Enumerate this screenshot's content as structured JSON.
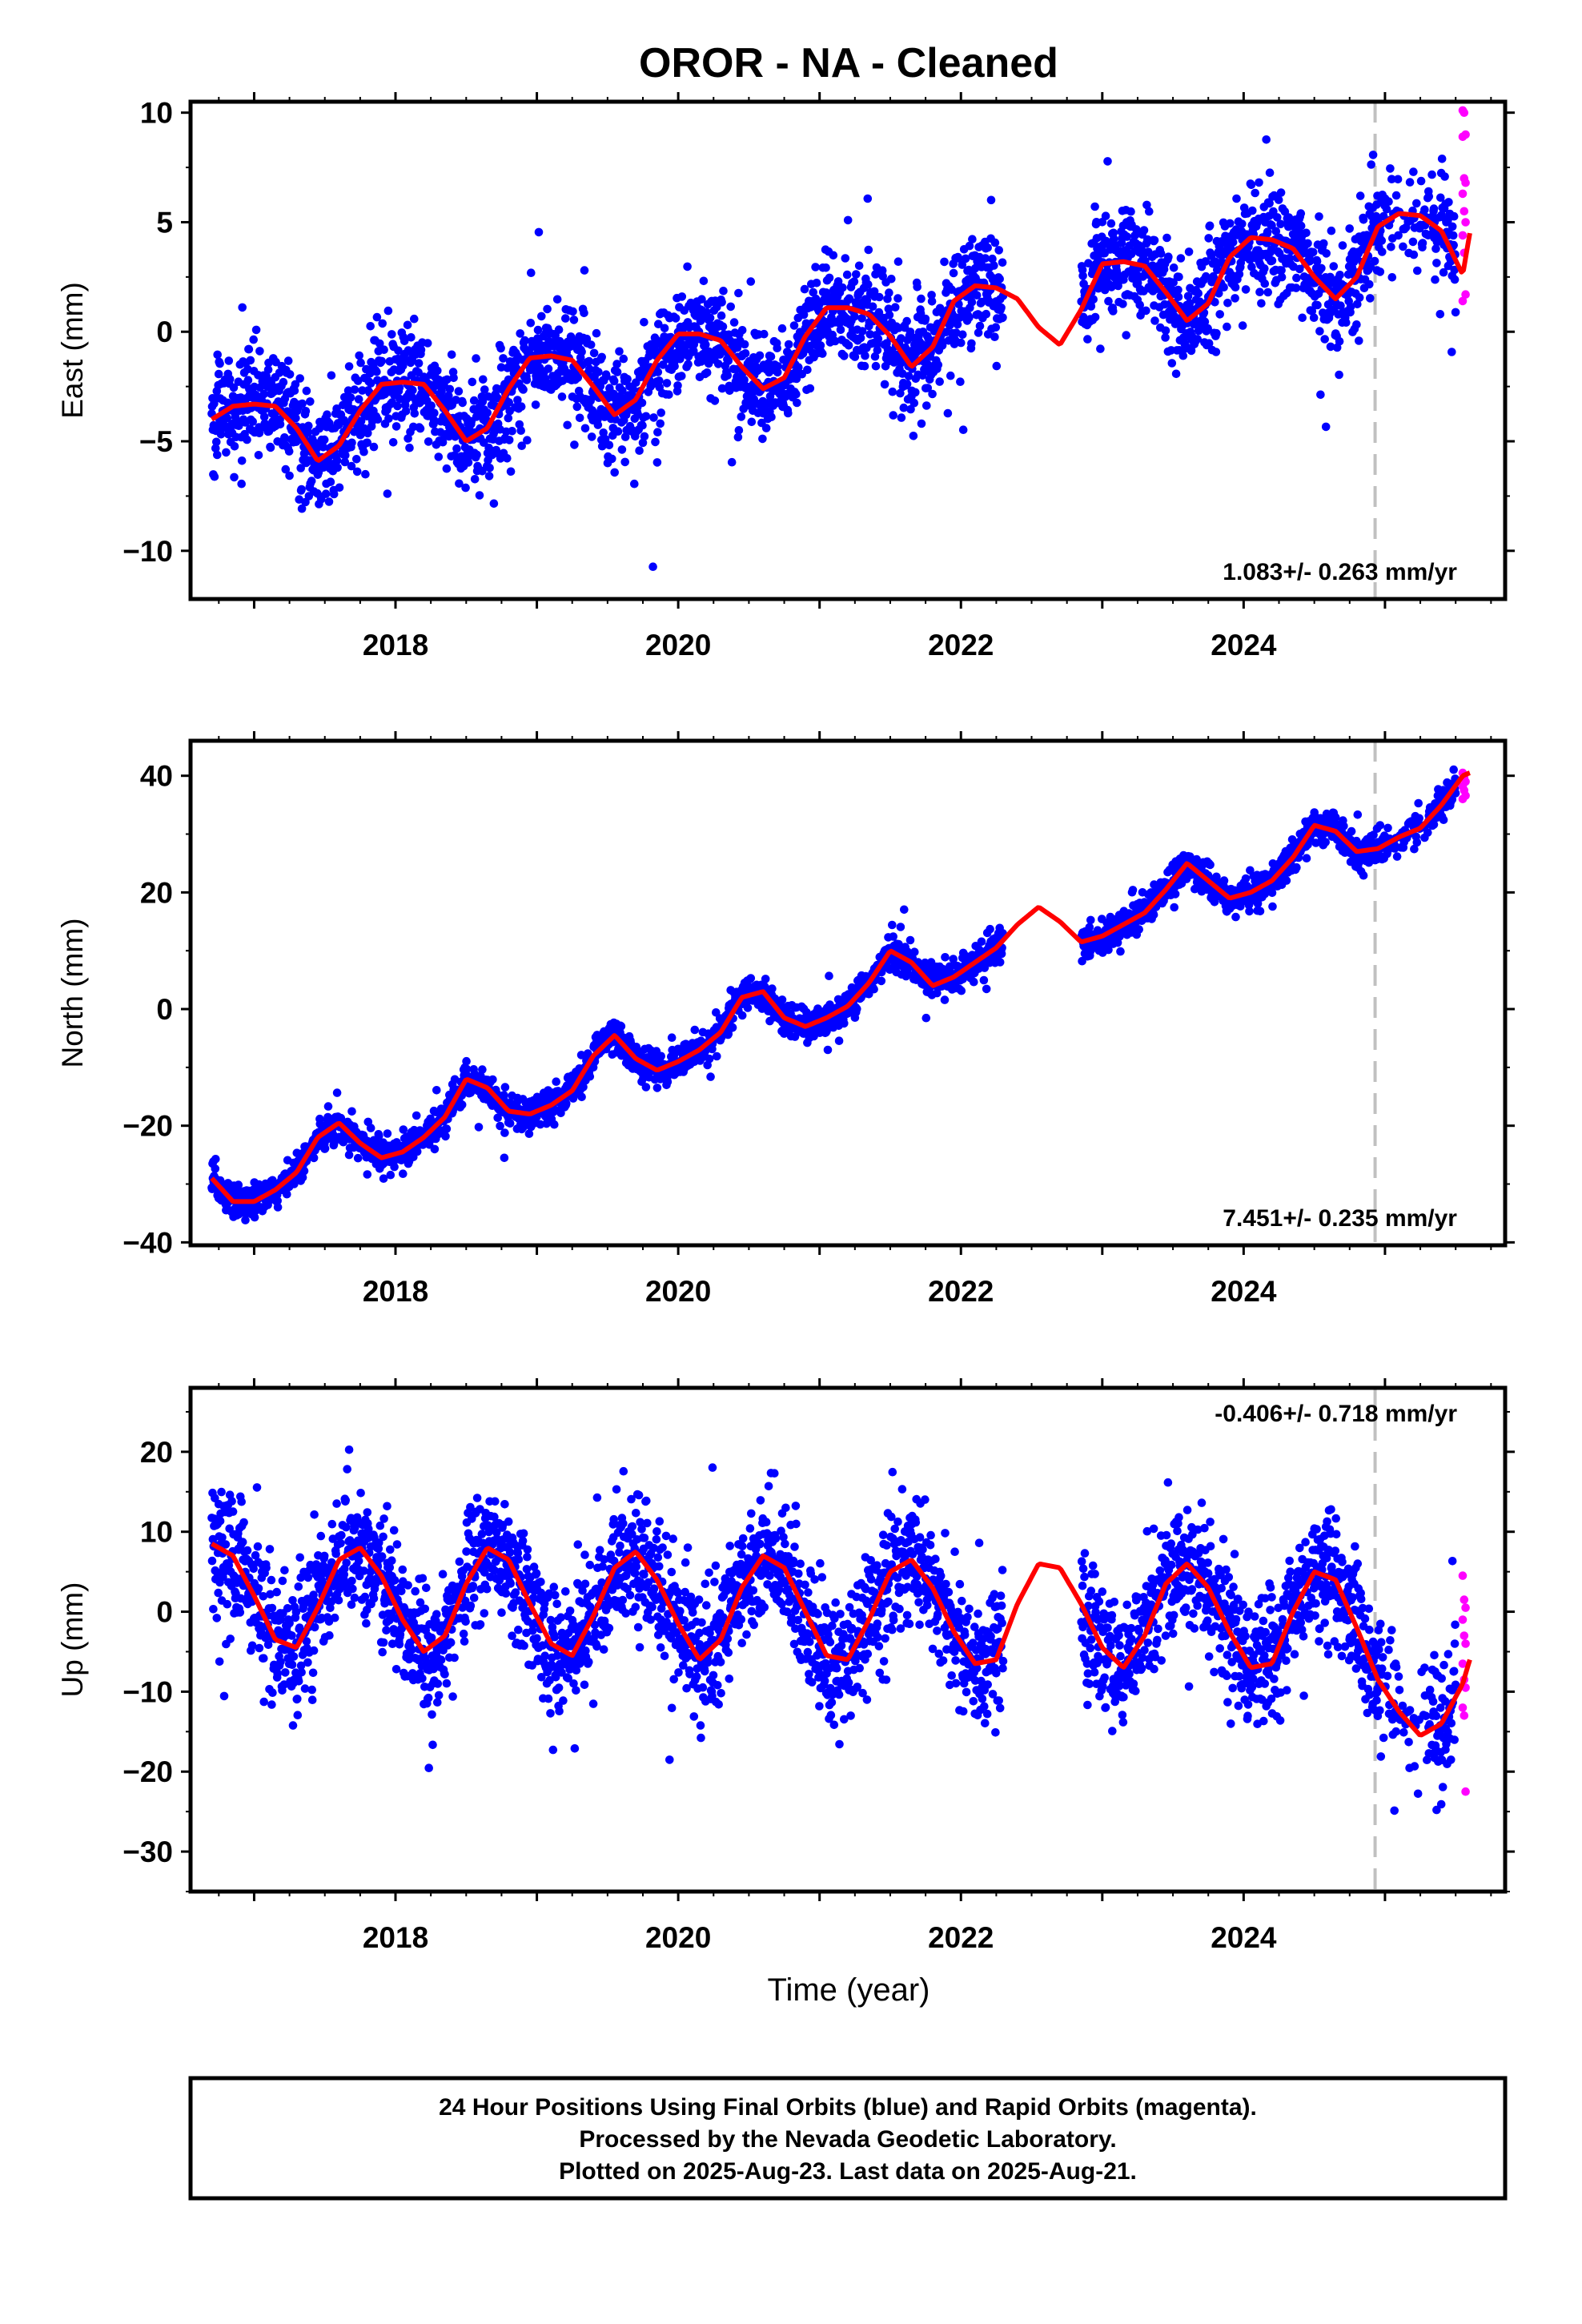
{
  "title": "OROR  - NA - Cleaned",
  "xlabel": "Time (year)",
  "colors": {
    "final_orbits": "#0000ff",
    "rapid_orbits": "#ff00ff",
    "model": "#ff0000",
    "antenna_change_line": "#c0c0c0"
  },
  "footer": {
    "line1": "24 Hour Positions Using Final Orbits (blue) and Rapid Orbits (magenta).",
    "line2": "Processed by the Nevada Geodetic Laboratory.",
    "line3": "Plotted on 2025-Aug-23. Last data on 2025-Aug-21."
  },
  "chart_data": [
    {
      "type": "scatter",
      "component": "east",
      "ylabel": "East (mm)",
      "xlim": [
        2016.55,
        2025.85
      ],
      "ylim": [
        -12.2,
        10.5
      ],
      "xticks": [
        2018,
        2020,
        2022,
        2024
      ],
      "yticks": [
        -10,
        -5,
        0,
        5,
        10
      ],
      "grid": false,
      "rate_label": "1.083+/- 0.263 mm/yr",
      "rate_position": "bottom-right",
      "discontinuity_x": 2024.93,
      "model": {
        "x": [
          2016.7,
          2016.85,
          2017.0,
          2017.15,
          2017.3,
          2017.45,
          2017.6,
          2017.75,
          2017.9,
          2018.05,
          2018.2,
          2018.35,
          2018.5,
          2018.65,
          2018.8,
          2018.95,
          2019.1,
          2019.25,
          2019.4,
          2019.55,
          2019.7,
          2019.85,
          2020.0,
          2020.15,
          2020.3,
          2020.45,
          2020.6,
          2020.75,
          2020.9,
          2021.05,
          2021.2,
          2021.35,
          2021.5,
          2021.65,
          2021.8,
          2021.95,
          2022.1,
          2022.25,
          2022.4,
          2022.55,
          2022.7,
          2022.85,
          2023.0,
          2023.15,
          2023.3,
          2023.45,
          2023.6,
          2023.75,
          2023.9,
          2024.05,
          2024.2,
          2024.35,
          2024.5,
          2024.65,
          2024.8,
          2024.95,
          2025.1,
          2025.25,
          2025.4,
          2025.55,
          2025.6
        ],
        "y": [
          -4.0,
          -3.4,
          -3.3,
          -3.4,
          -4.4,
          -5.9,
          -5.2,
          -3.6,
          -2.4,
          -2.3,
          -2.4,
          -3.6,
          -5.0,
          -4.4,
          -2.6,
          -1.2,
          -1.1,
          -1.3,
          -2.5,
          -3.8,
          -3.1,
          -1.3,
          -0.1,
          -0.1,
          -0.4,
          -1.6,
          -2.6,
          -2.1,
          -0.2,
          1.1,
          1.1,
          0.8,
          -0.2,
          -1.6,
          -0.7,
          1.4,
          2.1,
          2.0,
          1.5,
          0.2,
          -0.6,
          1.0,
          3.1,
          3.2,
          3.0,
          1.8,
          0.5,
          1.3,
          3.4,
          4.3,
          4.2,
          3.8,
          2.5,
          1.5,
          2.5,
          4.8,
          5.4,
          5.3,
          4.6,
          2.6,
          4.5
        ]
      },
      "residual_sd": 1.2,
      "gaps": [
        [
          2022.3,
          2022.85
        ]
      ],
      "rapid_values": [
        10.1,
        10.0,
        9.0,
        8.9,
        7.0,
        6.8,
        6.3,
        5.5,
        5.0,
        4.4,
        3.6,
        1.7,
        1.4
      ]
    },
    {
      "type": "scatter",
      "component": "north",
      "ylabel": "North (mm)",
      "xlim": [
        2016.55,
        2025.85
      ],
      "ylim": [
        -40.5,
        46.0
      ],
      "xticks": [
        2018,
        2020,
        2022,
        2024
      ],
      "yticks": [
        -40,
        -20,
        0,
        20,
        40
      ],
      "grid": false,
      "rate_label": "7.451+/- 0.235 mm/yr",
      "rate_position": "bottom-right",
      "discontinuity_x": 2024.93,
      "model": {
        "x": [
          2016.7,
          2016.85,
          2017.0,
          2017.15,
          2017.3,
          2017.45,
          2017.6,
          2017.75,
          2017.9,
          2018.05,
          2018.2,
          2018.35,
          2018.5,
          2018.65,
          2018.8,
          2018.95,
          2019.1,
          2019.25,
          2019.4,
          2019.55,
          2019.7,
          2019.85,
          2020.0,
          2020.15,
          2020.3,
          2020.45,
          2020.6,
          2020.75,
          2020.9,
          2021.05,
          2021.2,
          2021.35,
          2021.5,
          2021.65,
          2021.8,
          2021.95,
          2022.1,
          2022.25,
          2022.4,
          2022.55,
          2022.7,
          2022.85,
          2023.0,
          2023.15,
          2023.3,
          2023.45,
          2023.6,
          2023.75,
          2023.9,
          2024.05,
          2024.2,
          2024.35,
          2024.5,
          2024.65,
          2024.8,
          2024.95,
          2025.1,
          2025.25,
          2025.4,
          2025.55,
          2025.6
        ],
        "y": [
          -29.0,
          -33.0,
          -33.0,
          -31.0,
          -28.0,
          -22.0,
          -19.5,
          -23.0,
          -25.5,
          -24.5,
          -22.0,
          -18.5,
          -12.0,
          -13.5,
          -17.5,
          -18.0,
          -16.5,
          -14.0,
          -8.0,
          -4.5,
          -8.5,
          -10.5,
          -9.0,
          -7.0,
          -4.0,
          2.0,
          3.0,
          -1.5,
          -3.0,
          -1.5,
          0.5,
          4.5,
          10.0,
          8.0,
          4.0,
          5.5,
          8.0,
          10.5,
          14.5,
          17.5,
          15.0,
          11.5,
          12.5,
          14.5,
          16.5,
          20.5,
          25.0,
          22.0,
          19.0,
          20.0,
          22.0,
          26.0,
          31.5,
          30.5,
          27.0,
          27.5,
          29.5,
          31.0,
          35.0,
          40.0,
          40.5
        ]
      },
      "residual_sd": 1.4,
      "gaps": [
        [
          2022.3,
          2022.85
        ]
      ],
      "rapid_values": [
        40.5,
        39.8,
        39.0,
        38.2,
        37.5,
        36.6,
        36.0
      ]
    },
    {
      "type": "scatter",
      "component": "up",
      "ylabel": "Up (mm)",
      "xlim": [
        2016.55,
        2025.85
      ],
      "ylim": [
        -35.0,
        28.0
      ],
      "xticks": [
        2018,
        2020,
        2022,
        2024
      ],
      "yticks": [
        -30,
        -20,
        -10,
        0,
        10,
        20
      ],
      "grid": false,
      "rate_label": "-0.406+/- 0.718 mm/yr",
      "rate_position": "top-right",
      "discontinuity_x": 2024.93,
      "model": {
        "x": [
          2016.7,
          2016.85,
          2017.0,
          2017.15,
          2017.3,
          2017.45,
          2017.6,
          2017.75,
          2017.9,
          2018.05,
          2018.2,
          2018.35,
          2018.5,
          2018.65,
          2018.8,
          2018.95,
          2019.1,
          2019.25,
          2019.4,
          2019.55,
          2019.7,
          2019.85,
          2020.0,
          2020.15,
          2020.3,
          2020.45,
          2020.6,
          2020.75,
          2020.9,
          2021.05,
          2021.2,
          2021.35,
          2021.5,
          2021.65,
          2021.8,
          2021.95,
          2022.1,
          2022.25,
          2022.4,
          2022.55,
          2022.7,
          2022.85,
          2023.0,
          2023.15,
          2023.3,
          2023.45,
          2023.6,
          2023.75,
          2023.9,
          2024.05,
          2024.2,
          2024.35,
          2024.5,
          2024.65,
          2024.8,
          2024.95,
          2025.1,
          2025.25,
          2025.4,
          2025.55,
          2025.6
        ],
        "y": [
          8.5,
          7.0,
          2.0,
          -3.5,
          -4.5,
          0.5,
          6.5,
          8.0,
          4.5,
          -1.0,
          -5.0,
          -3.0,
          3.5,
          8.0,
          6.5,
          1.0,
          -4.0,
          -5.5,
          -0.5,
          5.5,
          7.5,
          4.0,
          -1.5,
          -6.0,
          -3.5,
          3.0,
          7.0,
          5.5,
          0.0,
          -5.5,
          -6.0,
          -1.0,
          5.0,
          6.5,
          3.0,
          -2.5,
          -6.5,
          -6.0,
          1.0,
          6.0,
          5.5,
          1.0,
          -4.5,
          -7.0,
          -3.0,
          3.5,
          6.0,
          3.0,
          -2.5,
          -7.0,
          -6.5,
          0.0,
          5.0,
          4.0,
          -2.0,
          -8.5,
          -12.5,
          -15.5,
          -14.0,
          -9.0,
          -6.0
        ]
      },
      "residual_sd": 4.0,
      "gaps": [
        [
          2022.3,
          2022.85
        ]
      ],
      "rapid_values": [
        4.5,
        1.5,
        0.5,
        -1.0,
        -3.0,
        -4.0,
        -6.5,
        -8.5,
        -9.5,
        -12.0,
        -13.0,
        -22.5
      ]
    }
  ]
}
